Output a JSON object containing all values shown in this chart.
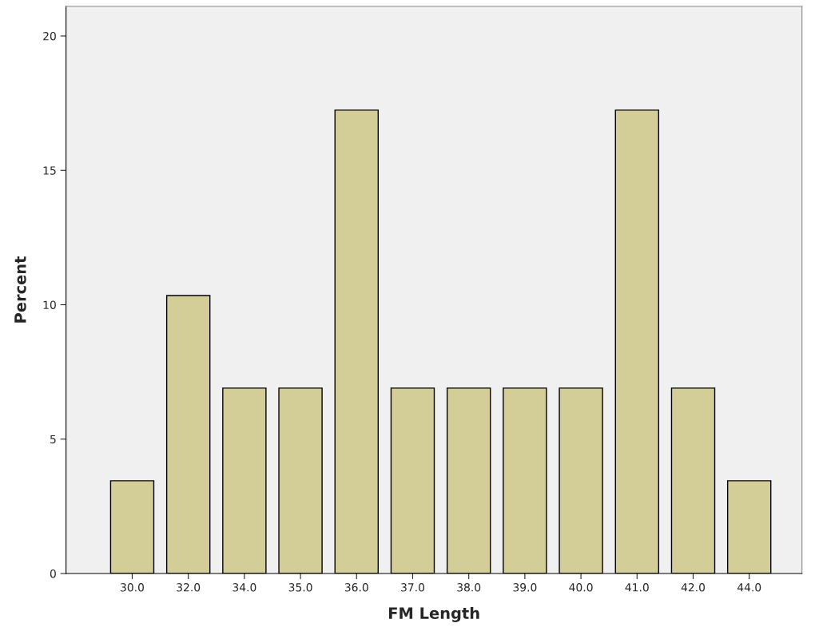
{
  "chart_data": {
    "type": "bar",
    "xlabel": "FM Length",
    "ylabel": "Percent",
    "categories": [
      "30.0",
      "32.0",
      "34.0",
      "35.0",
      "36.0",
      "37.0",
      "38.0",
      "39.0",
      "40.0",
      "41.0",
      "42.0",
      "44.0"
    ],
    "values": [
      3.45,
      10.34,
      6.9,
      6.9,
      17.24,
      6.9,
      6.9,
      6.9,
      6.9,
      17.24,
      6.9,
      3.45
    ],
    "color": "#d3ce97",
    "ylim": [
      0,
      21.1
    ],
    "yticks": [
      0,
      5,
      10,
      15,
      20
    ],
    "grid": false,
    "legend": false
  }
}
